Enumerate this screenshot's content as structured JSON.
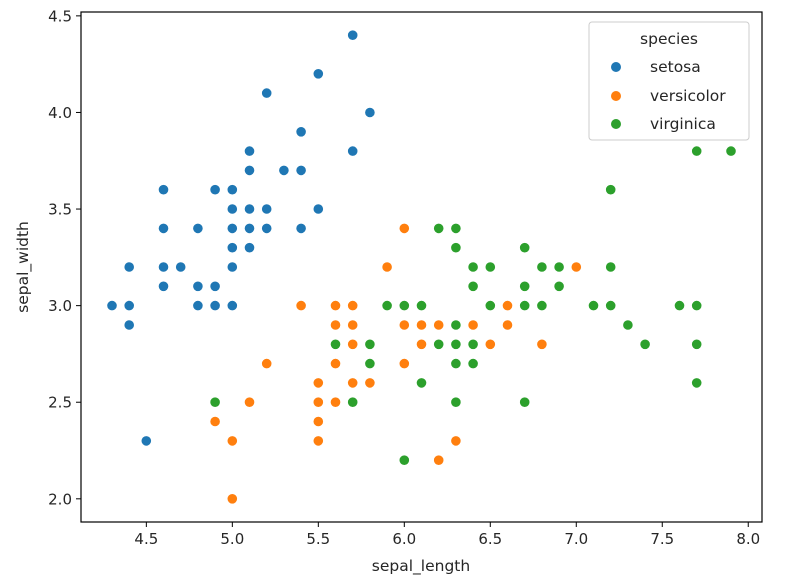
{
  "chart_data": {
    "type": "scatter",
    "title": "",
    "xlabel": "sepal_length",
    "ylabel": "sepal_width",
    "xlim": [
      4.12,
      8.08
    ],
    "ylim": [
      1.88,
      4.52
    ],
    "xticks": [
      4.5,
      5.0,
      5.5,
      6.0,
      6.5,
      7.0,
      7.5,
      8.0
    ],
    "xtick_labels": [
      "4.5",
      "5.0",
      "5.5",
      "6.0",
      "6.5",
      "7.0",
      "7.5",
      "8.0"
    ],
    "yticks": [
      2.0,
      2.5,
      3.0,
      3.5,
      4.0,
      4.5
    ],
    "ytick_labels": [
      "2.0",
      "2.5",
      "3.0",
      "3.5",
      "4.0",
      "4.5"
    ],
    "grid": false,
    "legend": {
      "title": "species",
      "placement": "top-right",
      "entries": [
        "setosa",
        "versicolor",
        "virginica"
      ]
    },
    "series": [
      {
        "name": "setosa",
        "color": "#1f77b4",
        "x": [
          5.1,
          4.9,
          4.7,
          4.6,
          5.0,
          5.4,
          4.6,
          5.0,
          4.4,
          4.9,
          5.4,
          4.8,
          4.8,
          4.3,
          5.8,
          5.7,
          5.4,
          5.1,
          5.7,
          5.1,
          5.4,
          5.1,
          4.6,
          5.1,
          4.8,
          5.0,
          5.0,
          5.2,
          5.2,
          4.7,
          4.8,
          5.4,
          5.2,
          5.5,
          4.9,
          5.0,
          5.5,
          4.9,
          4.4,
          5.1,
          5.0,
          4.5,
          4.4,
          5.0,
          5.1,
          4.8,
          5.1,
          4.6,
          5.3,
          5.0
        ],
        "y": [
          3.5,
          3.0,
          3.2,
          3.1,
          3.6,
          3.9,
          3.4,
          3.4,
          2.9,
          3.1,
          3.7,
          3.4,
          3.0,
          3.0,
          4.0,
          4.4,
          3.9,
          3.5,
          3.8,
          3.8,
          3.4,
          3.7,
          3.6,
          3.3,
          3.4,
          3.0,
          3.4,
          3.5,
          3.4,
          3.2,
          3.1,
          3.4,
          4.1,
          4.2,
          3.1,
          3.2,
          3.5,
          3.6,
          3.0,
          3.4,
          3.5,
          2.3,
          3.2,
          3.5,
          3.8,
          3.0,
          3.8,
          3.2,
          3.7,
          3.3
        ]
      },
      {
        "name": "versicolor",
        "color": "#ff7f0e",
        "x": [
          7.0,
          6.4,
          6.9,
          5.5,
          6.5,
          5.7,
          6.3,
          4.9,
          6.6,
          5.2,
          5.0,
          5.9,
          6.0,
          6.1,
          5.6,
          6.7,
          5.6,
          5.8,
          6.2,
          5.6,
          5.9,
          6.1,
          6.3,
          6.1,
          6.4,
          6.6,
          6.8,
          6.7,
          6.0,
          5.7,
          5.5,
          5.5,
          5.8,
          6.0,
          5.4,
          6.0,
          6.7,
          6.3,
          5.6,
          5.5,
          5.5,
          6.1,
          5.8,
          5.0,
          5.6,
          5.7,
          5.7,
          6.2,
          5.1,
          5.7
        ],
        "y": [
          3.2,
          3.2,
          3.1,
          2.3,
          2.8,
          2.8,
          3.3,
          2.4,
          2.9,
          2.7,
          2.0,
          3.0,
          2.2,
          2.9,
          2.9,
          3.1,
          3.0,
          2.7,
          2.2,
          2.5,
          3.2,
          2.8,
          2.5,
          2.8,
          2.9,
          3.0,
          2.8,
          3.0,
          2.9,
          2.6,
          2.4,
          2.4,
          2.7,
          2.7,
          3.0,
          3.4,
          3.1,
          2.3,
          3.0,
          2.5,
          2.6,
          3.0,
          2.6,
          2.3,
          2.7,
          3.0,
          2.9,
          2.9,
          2.5,
          2.8
        ]
      },
      {
        "name": "virginica",
        "color": "#2ca02c",
        "x": [
          6.3,
          5.8,
          7.1,
          6.3,
          6.5,
          7.6,
          4.9,
          7.3,
          6.7,
          7.2,
          6.5,
          6.4,
          6.8,
          5.7,
          5.8,
          6.4,
          6.5,
          7.7,
          7.7,
          6.0,
          6.9,
          5.6,
          7.7,
          6.3,
          6.7,
          7.2,
          6.2,
          6.1,
          6.4,
          7.2,
          7.4,
          7.9,
          6.4,
          6.3,
          6.1,
          7.7,
          6.3,
          6.4,
          6.0,
          6.9,
          6.7,
          6.9,
          5.8,
          6.8,
          6.7,
          6.7,
          6.3,
          6.5,
          6.2,
          5.9
        ],
        "y": [
          3.3,
          2.7,
          3.0,
          2.9,
          3.0,
          3.0,
          2.5,
          2.9,
          2.5,
          3.6,
          3.2,
          2.7,
          3.0,
          2.5,
          2.8,
          3.2,
          3.0,
          3.8,
          2.6,
          2.2,
          3.2,
          2.8,
          2.8,
          2.7,
          3.3,
          3.2,
          2.8,
          3.0,
          2.8,
          3.0,
          2.8,
          3.8,
          2.8,
          2.8,
          2.6,
          3.0,
          3.4,
          3.1,
          3.0,
          3.1,
          3.1,
          3.1,
          2.7,
          3.2,
          3.3,
          3.0,
          2.5,
          3.0,
          3.4,
          3.0
        ]
      }
    ]
  }
}
